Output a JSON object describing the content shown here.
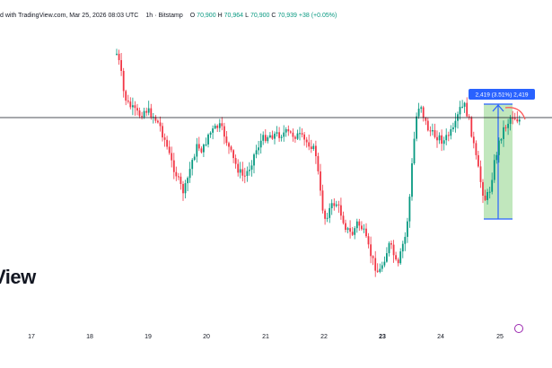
{
  "header": {
    "attribution": "d with TradingView.com, Mar 25, 2026 08:03 UTC",
    "interval": "1h",
    "exchange": "Bitstamp",
    "ohlc": [
      {
        "key": "O",
        "value": "70,900"
      },
      {
        "key": "H",
        "value": "70,964"
      },
      {
        "key": "L",
        "value": "70,900"
      },
      {
        "key": "C",
        "value": "70,939"
      },
      {
        "key": "",
        "value": "+38 (+0.05%)"
      }
    ]
  },
  "watermark": "View",
  "colors": {
    "up": "#089981",
    "down": "#f23645",
    "measure_fill": "#b6e3b2",
    "measure_line": "#2962ff",
    "label_bg": "#2962ff",
    "hline": "#131722",
    "arc": "#ff5252"
  },
  "chart_data": {
    "type": "candlestick",
    "x_tick_labels": [
      "17",
      "18",
      "19",
      "20",
      "21",
      "22",
      "23",
      "24",
      "25"
    ],
    "bold_tick": "23",
    "horizontal_line_level": "≈70,900",
    "measure_label": "2,419 (3.51%) 2,419",
    "candles_note": "hourly candles, Mar 17 – Mar 25"
  }
}
